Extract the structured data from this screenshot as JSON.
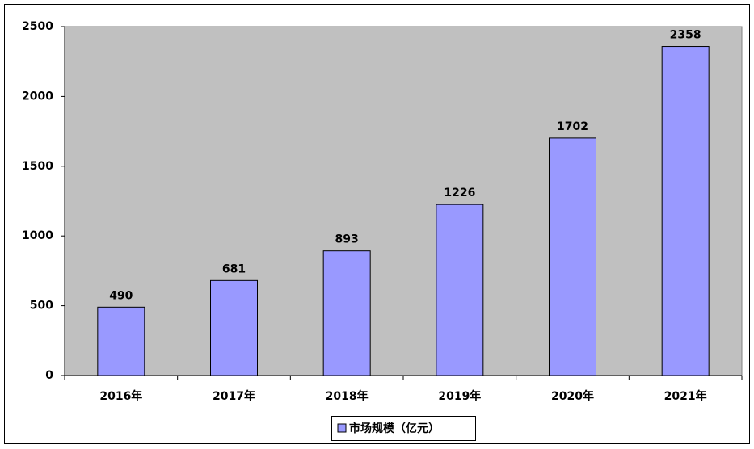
{
  "chart_data": {
    "type": "bar",
    "categories": [
      "2016年",
      "2017年",
      "2018年",
      "2019年",
      "2020年",
      "2021年"
    ],
    "series": [
      {
        "name": "市场规模（亿元）",
        "color": "#9999ff",
        "values": [
          490,
          681,
          893,
          1226,
          1702,
          2358
        ]
      }
    ],
    "ylim": [
      0,
      2500
    ],
    "yticks": [
      0,
      500,
      1000,
      1500,
      2000,
      2500
    ],
    "grid": false,
    "legend": "bottom"
  }
}
